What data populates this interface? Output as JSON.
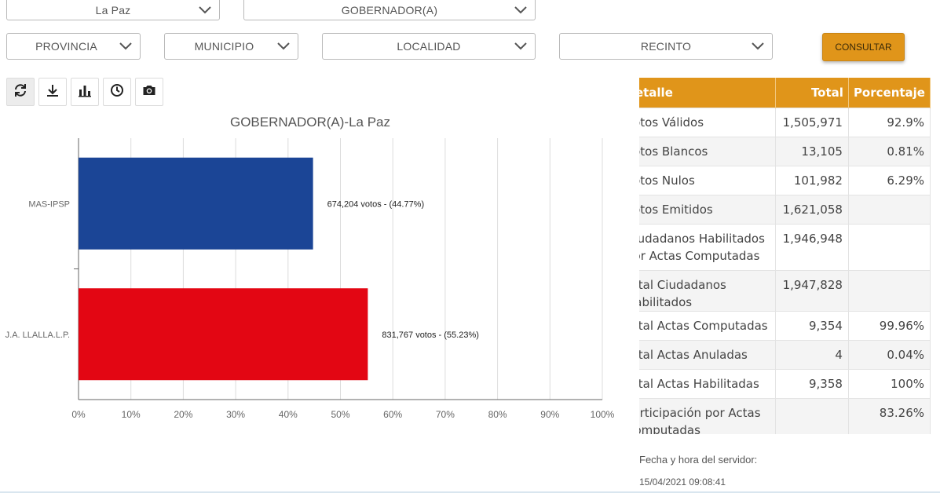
{
  "filters": {
    "department": "La Paz",
    "position": "GOBERNADOR(A)",
    "province": "PROVINCIA",
    "municipality": "MUNICIPIO",
    "locality": "LOCALIDAD",
    "precinct": "RECINTO",
    "consult_label": "CONSULTAR"
  },
  "toolbar": {
    "buttons": [
      "refresh-icon",
      "download-icon",
      "bar-chart-icon",
      "clock-icon",
      "camera-icon"
    ]
  },
  "chart_data": {
    "type": "bar",
    "orientation": "horizontal",
    "title": "GOBERNADOR(A)-La Paz",
    "categories": [
      "MAS-IPSP",
      "J.A. LLALLA.L.P."
    ],
    "values": [
      44.77,
      55.23
    ],
    "data_labels": [
      "674,204 votos - (44.77%)",
      "831,767 votos - (55.23%)"
    ],
    "colors": [
      "#1b4596",
      "#e30613"
    ],
    "xlim": [
      0,
      100
    ],
    "xticks": [
      "0%",
      "10%",
      "20%",
      "30%",
      "40%",
      "50%",
      "60%",
      "70%",
      "80%",
      "90%",
      "100%"
    ],
    "grid": true
  },
  "table": {
    "headers": {
      "detail": "Detalle",
      "total": "Total",
      "percent": "Porcentaje"
    },
    "rows": [
      {
        "detail": "Votos Válidos",
        "total": "1,505,971",
        "percent": "92.9%"
      },
      {
        "detail": "Votos Blancos",
        "total": "13,105",
        "percent": "0.81%"
      },
      {
        "detail": "Votos Nulos",
        "total": "101,982",
        "percent": "6.29%"
      },
      {
        "detail": "Votos Emitidos",
        "total": "1,621,058",
        "percent": ""
      },
      {
        "detail": "Ciudadanos Habilitados por Actas Computadas",
        "total": "1,946,948",
        "percent": ""
      },
      {
        "detail": "Total Ciudadanos Habilitados",
        "total": "1,947,828",
        "percent": ""
      },
      {
        "detail": "Total Actas Computadas",
        "total": "9,354",
        "percent": "99.96%"
      },
      {
        "detail": "Total Actas Anuladas",
        "total": "4",
        "percent": "0.04%"
      },
      {
        "detail": "Total Actas Habilitadas",
        "total": "9,358",
        "percent": "100%"
      },
      {
        "detail": "Participación por Actas Computadas",
        "total": "",
        "percent": "83.26%"
      }
    ]
  },
  "server": {
    "label": "Fecha y hora del servidor:",
    "time": "15/04/2021 09:08:41"
  }
}
